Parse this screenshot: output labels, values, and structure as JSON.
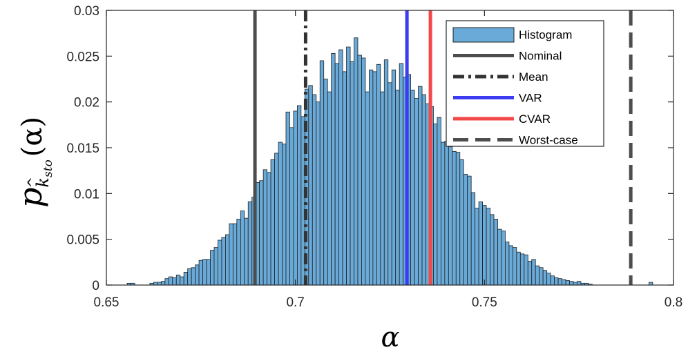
{
  "chart_data": {
    "type": "bar",
    "title": "",
    "xlabel": "α",
    "ylabel": {
      "main": "p",
      "sub1": "k",
      "sub1_hat": "^",
      "sub2": "sto",
      "arg": "(α)"
    },
    "xlim": [
      0.65,
      0.8
    ],
    "ylim": [
      0,
      0.03
    ],
    "x_ticks": [
      "0.65",
      "0.7",
      "0.75",
      "0.8"
    ],
    "y_ticks": [
      "0",
      "0.005",
      "0.01",
      "0.015",
      "0.02",
      "0.025",
      "0.03"
    ],
    "bin_start": 0.6555,
    "bin_width": 0.001,
    "histogram_values": [
      0.0002,
      0.0002,
      0.0,
      0.0,
      0.0,
      0.0,
      0.0002,
      0.0003,
      0.0003,
      0.0004,
      0.0007,
      0.0009,
      0.0008,
      0.0011,
      0.0009,
      0.0014,
      0.0018,
      0.0019,
      0.0022,
      0.0027,
      0.0028,
      0.0028,
      0.0038,
      0.0041,
      0.0049,
      0.0052,
      0.0055,
      0.0067,
      0.0067,
      0.0072,
      0.0081,
      0.0073,
      0.0091,
      0.0096,
      0.0112,
      0.0114,
      0.0126,
      0.0123,
      0.0137,
      0.0144,
      0.0156,
      0.0154,
      0.0189,
      0.0172,
      0.019,
      0.0196,
      0.0184,
      0.0214,
      0.0218,
      0.0208,
      0.02,
      0.0245,
      0.0225,
      0.0211,
      0.0253,
      0.0242,
      0.0257,
      0.0233,
      0.026,
      0.0244,
      0.027,
      0.0251,
      0.0248,
      0.0211,
      0.0235,
      0.0233,
      0.0241,
      0.0211,
      0.0246,
      0.0221,
      0.0235,
      0.0213,
      0.0242,
      0.0227,
      0.023,
      0.0213,
      0.0204,
      0.0217,
      0.0208,
      0.0198,
      0.0195,
      0.0176,
      0.0183,
      0.0156,
      0.0157,
      0.0151,
      0.0146,
      0.0145,
      0.0137,
      0.0121,
      0.0119,
      0.0101,
      0.0084,
      0.0091,
      0.0087,
      0.0084,
      0.0077,
      0.0072,
      0.0061,
      0.0059,
      0.0047,
      0.0043,
      0.0041,
      0.0036,
      0.0034,
      0.0033,
      0.0026,
      0.0028,
      0.0021,
      0.0019,
      0.0016,
      0.0013,
      0.001,
      0.0008,
      0.0007,
      0.0006,
      0.0005,
      0.0004,
      0.0003,
      0.0004,
      0.0002,
      0.0002,
      0.0001,
      0.0,
      0.0,
      0.0,
      0.0,
      0.0,
      0.0,
      0.0,
      0.0,
      0.0,
      0.0,
      0.0,
      0.0,
      0.0,
      0.0,
      0.0,
      0.0003
    ],
    "reference_lines": [
      {
        "name": "Nominal",
        "x": 0.6893,
        "color": "#4d4d4d",
        "style": "solid"
      },
      {
        "name": "Mean",
        "x": 0.7027,
        "color": "#333333",
        "style": "dashdot"
      },
      {
        "name": "VAR",
        "x": 0.7295,
        "color": "#3c3cf2",
        "style": "solid"
      },
      {
        "name": "CVAR",
        "x": 0.7357,
        "color": "#f24848",
        "style": "solid"
      },
      {
        "name": "Worst-case",
        "x": 0.7887,
        "color": "#4d4d4d",
        "style": "dashed"
      }
    ],
    "legend": {
      "position": "top-right",
      "entries": [
        "Histogram",
        "Nominal",
        "Mean",
        "VAR",
        "CVAR",
        "Worst-case"
      ]
    },
    "colors": {
      "histogram_fill": "#6aaad8",
      "histogram_edge": "#1f1f1f",
      "axis": "#262626"
    },
    "grid": false
  }
}
